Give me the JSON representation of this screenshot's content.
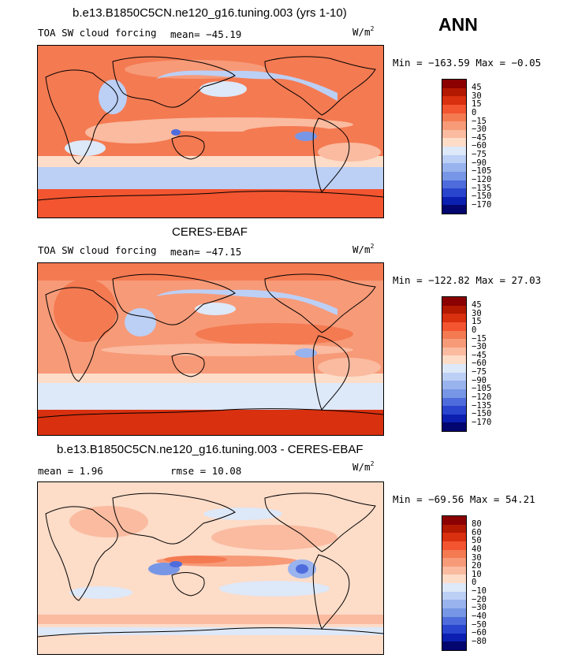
{
  "season": "ANN",
  "panels": [
    {
      "title": "b.e13.B1850C5CN.ne120_g16.tuning.003 (yrs 1-10)",
      "left_label": "TOA SW cloud forcing",
      "stat_text": "mean=  −45.19",
      "units": "W/m",
      "units_exp": "2",
      "minmax": "Min = −163.59 Max =  −0.05",
      "levels": [
        "45",
        "30",
        "15",
        "0",
        "−15",
        "−30",
        "−45",
        "−60",
        "−75",
        "−90",
        "−105",
        "−120",
        "−135",
        "−150",
        "−170"
      ],
      "colors": [
        "#8b0000",
        "#b31900",
        "#d93010",
        "#f25530",
        "#f47a52",
        "#f79a78",
        "#fabba0",
        "#fddcc8",
        "#dde8f8",
        "#bccff5",
        "#99b3ee",
        "#7796e6",
        "#4f6cdd",
        "#2a45cd",
        "#0b1fb0",
        "#02066e"
      ]
    },
    {
      "title": "CERES-EBAF",
      "left_label": "TOA SW cloud forcing",
      "stat_text": "mean=  −47.15",
      "units": "W/m",
      "units_exp": "2",
      "minmax": "Min = −122.82 Max =  27.03",
      "levels": [
        "45",
        "30",
        "15",
        "0",
        "−15",
        "−30",
        "−45",
        "−60",
        "−75",
        "−90",
        "−105",
        "−120",
        "−135",
        "−150",
        "−170"
      ],
      "colors": [
        "#8b0000",
        "#b31900",
        "#d93010",
        "#f25530",
        "#f47a52",
        "#f79a78",
        "#fabba0",
        "#fddcc8",
        "#dde8f8",
        "#bccff5",
        "#99b3ee",
        "#7796e6",
        "#4f6cdd",
        "#2a45cd",
        "#0b1fb0",
        "#02066e"
      ]
    },
    {
      "title": "b.e13.B1850C5CN.ne120_g16.tuning.003 - CERES-EBAF",
      "left_label": "mean =   1.96",
      "stat_text": "rmse =  10.08",
      "units": "W/m",
      "units_exp": "2",
      "minmax": "Min = −69.56 Max =  54.21",
      "levels": [
        "80",
        "60",
        "50",
        "40",
        "30",
        "20",
        "10",
        "0",
        "−10",
        "−20",
        "−30",
        "−40",
        "−50",
        "−60",
        "−80"
      ],
      "colors": [
        "#8b0000",
        "#b31900",
        "#d93010",
        "#f25530",
        "#f47a52",
        "#f79a78",
        "#fabba0",
        "#fddcc8",
        "#dde8f8",
        "#bccff5",
        "#99b3ee",
        "#7796e6",
        "#4f6cdd",
        "#2a45cd",
        "#0b1fb0",
        "#02066e"
      ]
    }
  ]
}
